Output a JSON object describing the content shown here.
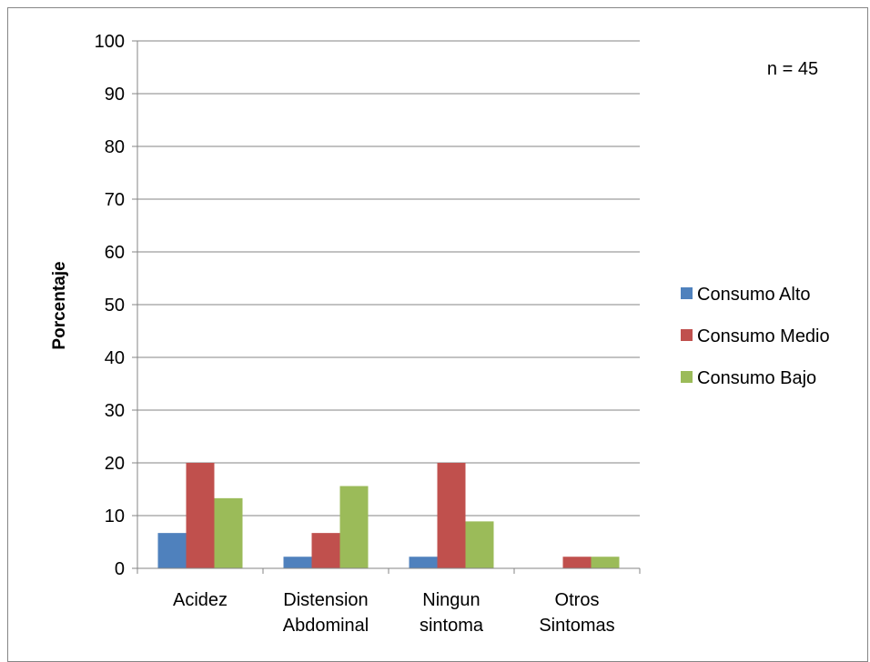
{
  "chart_data": {
    "type": "bar",
    "title": "",
    "xlabel": "",
    "ylabel": "Porcentaje",
    "ylim": [
      0,
      100
    ],
    "yticks": [
      0,
      10,
      20,
      30,
      40,
      50,
      60,
      70,
      80,
      90,
      100
    ],
    "grid": true,
    "legend_position": "right",
    "annotation": "n = 45",
    "categories": [
      [
        "Acidez"
      ],
      [
        "Distension",
        "Abdominal"
      ],
      [
        "Ningun",
        "sintoma"
      ],
      [
        "Otros",
        "Sintomas"
      ]
    ],
    "series": [
      {
        "name": "Consumo Alto",
        "color": "#4F81BD",
        "values": [
          6.7,
          2.2,
          2.2,
          0
        ]
      },
      {
        "name": "Consumo Medio",
        "color": "#C0504D",
        "values": [
          20,
          6.7,
          20,
          2.2
        ]
      },
      {
        "name": "Consumo Bajo",
        "color": "#9BBB59",
        "values": [
          13.3,
          15.6,
          8.9,
          2.2
        ]
      }
    ]
  }
}
